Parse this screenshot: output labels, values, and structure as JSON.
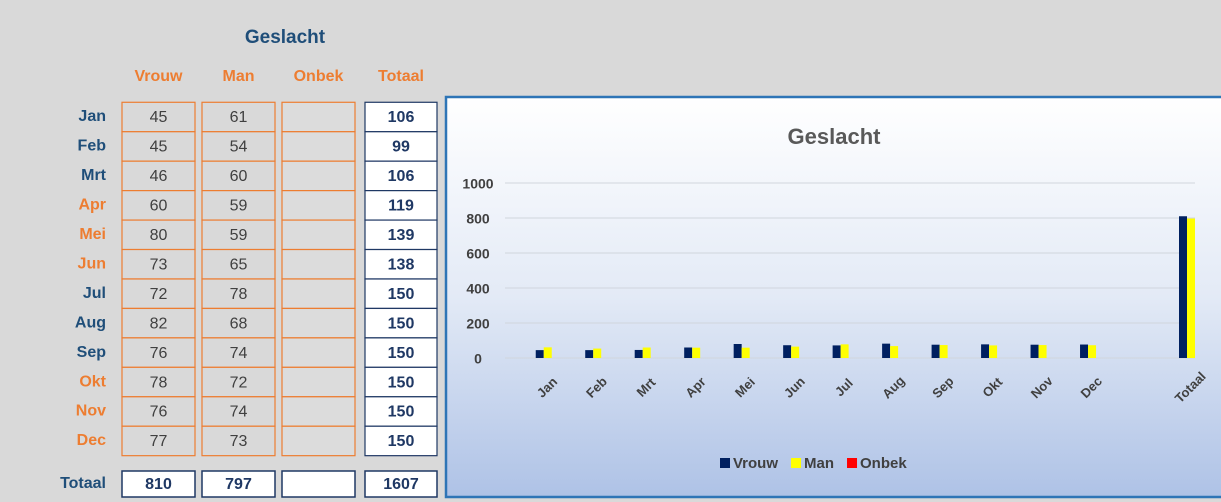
{
  "table": {
    "title": "Geslacht",
    "columns": [
      "Vrouw",
      "Man",
      "Onbek",
      "Totaal"
    ],
    "rows": [
      {
        "label": "Jan",
        "color": "#1f4e79",
        "values": [
          45,
          61,
          null,
          106
        ]
      },
      {
        "label": "Feb",
        "color": "#1f4e79",
        "values": [
          45,
          54,
          null,
          99
        ]
      },
      {
        "label": "Mrt",
        "color": "#1f4e79",
        "values": [
          46,
          60,
          null,
          106
        ]
      },
      {
        "label": "Apr",
        "color": "#ed7d31",
        "values": [
          60,
          59,
          null,
          119
        ]
      },
      {
        "label": "Mei",
        "color": "#ed7d31",
        "values": [
          80,
          59,
          null,
          139
        ]
      },
      {
        "label": "Jun",
        "color": "#ed7d31",
        "values": [
          73,
          65,
          null,
          138
        ]
      },
      {
        "label": "Jul",
        "color": "#1f4e79",
        "values": [
          72,
          78,
          null,
          150
        ]
      },
      {
        "label": "Aug",
        "color": "#1f4e79",
        "values": [
          82,
          68,
          null,
          150
        ]
      },
      {
        "label": "Sep",
        "color": "#1f4e79",
        "values": [
          76,
          74,
          null,
          150
        ]
      },
      {
        "label": "Okt",
        "color": "#ed7d31",
        "values": [
          78,
          72,
          null,
          150
        ]
      },
      {
        "label": "Nov",
        "color": "#ed7d31",
        "values": [
          76,
          74,
          null,
          150
        ]
      },
      {
        "label": "Dec",
        "color": "#ed7d31",
        "values": [
          77,
          73,
          null,
          150
        ]
      }
    ],
    "total": {
      "label": "Totaal",
      "color": "#1f4e79",
      "values": [
        810,
        797,
        null,
        1607
      ]
    }
  },
  "chart_data": {
    "type": "bar",
    "title": "Geslacht",
    "categories": [
      "Jan",
      "Feb",
      "Mrt",
      "Apr",
      "Mei",
      "Jun",
      "Jul",
      "Aug",
      "Sep",
      "Okt",
      "Nov",
      "Dec",
      null,
      "Totaal"
    ],
    "series": [
      {
        "name": "Vrouw",
        "color": "#002060",
        "values": [
          45,
          45,
          46,
          60,
          80,
          73,
          72,
          82,
          76,
          78,
          76,
          77,
          null,
          810
        ]
      },
      {
        "name": "Man",
        "color": "#ffff00",
        "values": [
          61,
          54,
          60,
          59,
          59,
          65,
          78,
          68,
          74,
          72,
          74,
          73,
          null,
          797
        ]
      },
      {
        "name": "Onbek",
        "color": "#ff0000",
        "values": [
          null,
          null,
          null,
          null,
          null,
          null,
          null,
          null,
          null,
          null,
          null,
          null,
          null,
          null
        ]
      }
    ],
    "ylim": [
      0,
      1000
    ],
    "yticks": [
      0,
      200,
      400,
      600,
      800,
      1000
    ],
    "grid": true,
    "legend": "bottom"
  }
}
